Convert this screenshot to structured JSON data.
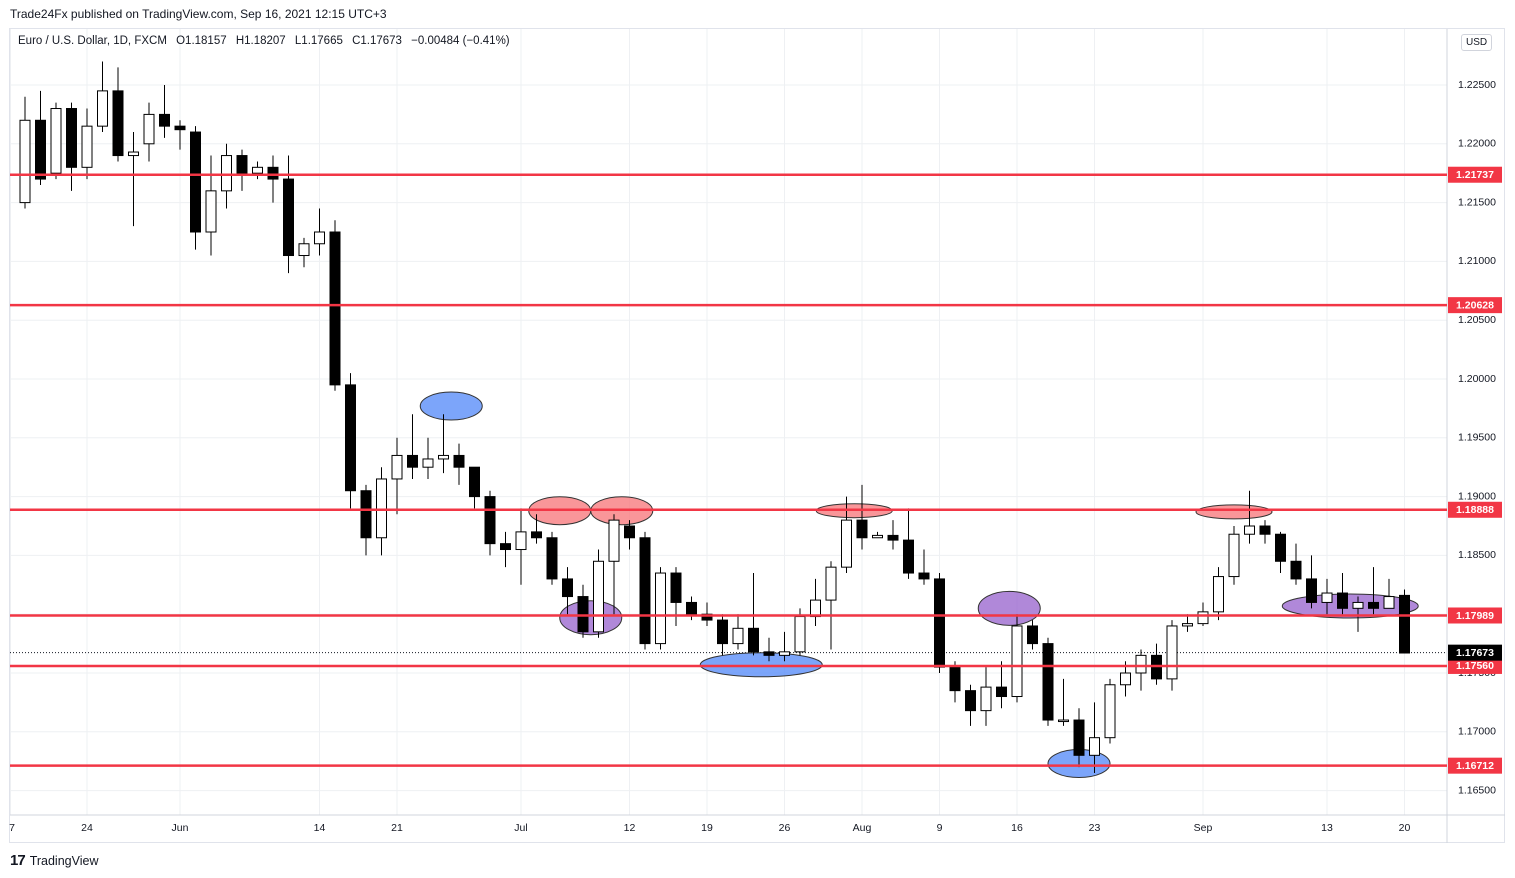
{
  "header": {
    "published": "Trade24Fx published on TradingView.com, Sep 16, 2021 12:15 UTC+3"
  },
  "legend": {
    "symbol": "Euro / U.S. Dollar, 1D, FXCM",
    "open": "O1.18157",
    "high": "H1.18207",
    "low": "L1.17665",
    "close": "C1.17673",
    "change": "−0.00484 (−0.41%)"
  },
  "currency_button": "USD",
  "footer": {
    "brand": "TradingView",
    "logo_glyph": "17"
  },
  "colors": {
    "level_line": "#f23645",
    "grid": "#eef0f3",
    "resistance_zone": "#f77c80",
    "support_zone": "#5b8ff9",
    "pivot_zone": "#9c6ad0",
    "candle_down": "#000000",
    "candle_up": "#ffffff"
  },
  "chart_data": {
    "type": "candlestick",
    "y_ticks": [
      "1.22500",
      "1.22000",
      "1.21500",
      "1.21000",
      "1.20500",
      "1.20000",
      "1.19500",
      "1.19000",
      "1.18500",
      "1.18000",
      "1.17500",
      "1.17000",
      "1.16500"
    ],
    "x_ticks": [
      {
        "label": "7",
        "i": -1
      },
      {
        "label": "24",
        "i": 4
      },
      {
        "label": "Jun",
        "i": 10
      },
      {
        "label": "14",
        "i": 19
      },
      {
        "label": "21",
        "i": 24
      },
      {
        "label": "Jul",
        "i": 32
      },
      {
        "label": "12",
        "i": 39
      },
      {
        "label": "19",
        "i": 44
      },
      {
        "label": "26",
        "i": 49
      },
      {
        "label": "Aug",
        "i": 54
      },
      {
        "label": "9",
        "i": 59
      },
      {
        "label": "16",
        "i": 64
      },
      {
        "label": "23",
        "i": 69
      },
      {
        "label": "Sep",
        "i": 76
      },
      {
        "label": "13",
        "i": 84
      },
      {
        "label": "20",
        "i": 89
      }
    ],
    "last_price": "1.17673",
    "levels": [
      {
        "label": "1.21737",
        "value": 1.21737
      },
      {
        "label": "1.20628",
        "value": 1.20628
      },
      {
        "label": "1.18888",
        "value": 1.18888
      },
      {
        "label": "1.17989",
        "value": 1.17989
      },
      {
        "label": "1.17560",
        "value": 1.1756
      },
      {
        "label": "1.16712",
        "value": 1.16712
      }
    ],
    "zones": [
      {
        "kind": "support",
        "i": 27.5,
        "price": 1.1977
      },
      {
        "kind": "resistance",
        "i": 34.5,
        "price": 1.1888
      },
      {
        "kind": "resistance",
        "i": 38.5,
        "price": 1.1888
      },
      {
        "kind": "pivot",
        "i": 36.5,
        "price": 1.1797
      },
      {
        "kind": "support",
        "i": 47.5,
        "price": 1.1757
      },
      {
        "kind": "resistance",
        "i": 53.5,
        "price": 1.1888
      },
      {
        "kind": "pivot",
        "i": 63.5,
        "price": 1.1805
      },
      {
        "kind": "support",
        "i": 68,
        "price": 1.1673
      },
      {
        "kind": "resistance",
        "i": 78,
        "price": 1.1887
      },
      {
        "kind": "pivot",
        "i": 85.5,
        "price": 1.1807
      }
    ],
    "candles": [
      [
        1.215,
        1.222,
        1.224,
        1.2145
      ],
      [
        1.222,
        1.217,
        1.2245,
        1.2165
      ],
      [
        1.2175,
        1.223,
        1.2235,
        1.217
      ],
      [
        1.223,
        1.218,
        1.2235,
        1.216
      ],
      [
        1.218,
        1.2215,
        1.223,
        1.217
      ],
      [
        1.2215,
        1.2245,
        1.227,
        1.221
      ],
      [
        1.2245,
        1.219,
        1.2265,
        1.2185
      ],
      [
        1.219,
        1.2193,
        1.221,
        1.213
      ],
      [
        1.22,
        1.2225,
        1.2235,
        1.2185
      ],
      [
        1.2225,
        1.2215,
        1.225,
        1.2205
      ],
      [
        1.2215,
        1.2212,
        1.222,
        1.2195
      ],
      [
        1.221,
        1.2125,
        1.2215,
        1.211
      ],
      [
        1.2125,
        1.216,
        1.219,
        1.2105
      ],
      [
        1.216,
        1.219,
        1.22,
        1.2145
      ],
      [
        1.219,
        1.2175,
        1.2195,
        1.216
      ],
      [
        1.2175,
        1.218,
        1.2185,
        1.217
      ],
      [
        1.218,
        1.217,
        1.219,
        1.215
      ],
      [
        1.217,
        1.2105,
        1.219,
        1.209
      ],
      [
        1.2105,
        1.2115,
        1.212,
        1.2095
      ],
      [
        1.2115,
        1.2125,
        1.2145,
        1.2105
      ],
      [
        1.2125,
        1.1995,
        1.2135,
        1.199
      ],
      [
        1.1995,
        1.1905,
        1.2005,
        1.189
      ],
      [
        1.1905,
        1.1865,
        1.191,
        1.185
      ],
      [
        1.1865,
        1.1915,
        1.1925,
        1.185
      ],
      [
        1.1915,
        1.1935,
        1.195,
        1.1885
      ],
      [
        1.1935,
        1.1925,
        1.197,
        1.1915
      ],
      [
        1.1925,
        1.1932,
        1.195,
        1.1915
      ],
      [
        1.1932,
        1.1935,
        1.197,
        1.192
      ],
      [
        1.1935,
        1.1925,
        1.1945,
        1.191
      ],
      [
        1.1925,
        1.19,
        1.1925,
        1.189
      ],
      [
        1.19,
        1.186,
        1.1905,
        1.185
      ],
      [
        1.186,
        1.1855,
        1.187,
        1.184
      ],
      [
        1.1855,
        1.187,
        1.189,
        1.1825
      ],
      [
        1.187,
        1.1865,
        1.1885,
        1.186
      ],
      [
        1.1865,
        1.183,
        1.187,
        1.1825
      ],
      [
        1.183,
        1.1815,
        1.184,
        1.18
      ],
      [
        1.1815,
        1.1785,
        1.1825,
        1.178
      ],
      [
        1.1785,
        1.1845,
        1.1855,
        1.178
      ],
      [
        1.1845,
        1.188,
        1.1885,
        1.18
      ],
      [
        1.1875,
        1.1865,
        1.188,
        1.1855
      ],
      [
        1.1865,
        1.1775,
        1.187,
        1.177
      ],
      [
        1.1775,
        1.1835,
        1.184,
        1.177
      ],
      [
        1.1835,
        1.181,
        1.184,
        1.179
      ],
      [
        1.181,
        1.18,
        1.1815,
        1.1795
      ],
      [
        1.18,
        1.1795,
        1.181,
        1.179
      ],
      [
        1.1795,
        1.1775,
        1.18,
        1.1765
      ],
      [
        1.1775,
        1.1788,
        1.18,
        1.177
      ],
      [
        1.1788,
        1.1768,
        1.1835,
        1.1765
      ],
      [
        1.1768,
        1.1765,
        1.178,
        1.176
      ],
      [
        1.1765,
        1.1768,
        1.1785,
        1.176
      ],
      [
        1.1768,
        1.1798,
        1.1805,
        1.1765
      ],
      [
        1.1798,
        1.1812,
        1.183,
        1.179
      ],
      [
        1.1812,
        1.184,
        1.1845,
        1.177
      ],
      [
        1.184,
        1.188,
        1.19,
        1.1835
      ],
      [
        1.188,
        1.1865,
        1.191,
        1.1855
      ],
      [
        1.1865,
        1.1867,
        1.187,
        1.1865
      ],
      [
        1.1867,
        1.1863,
        1.188,
        1.1855
      ],
      [
        1.1863,
        1.1835,
        1.189,
        1.183
      ],
      [
        1.1835,
        1.183,
        1.1855,
        1.1825
      ],
      [
        1.183,
        1.1755,
        1.1835,
        1.175
      ],
      [
        1.1755,
        1.1735,
        1.176,
        1.1725
      ],
      [
        1.1735,
        1.1718,
        1.174,
        1.1705
      ],
      [
        1.1718,
        1.1738,
        1.1755,
        1.1705
      ],
      [
        1.1738,
        1.173,
        1.176,
        1.172
      ],
      [
        1.173,
        1.179,
        1.18,
        1.1725
      ],
      [
        1.179,
        1.1775,
        1.1795,
        1.177
      ],
      [
        1.1775,
        1.171,
        1.178,
        1.1705
      ],
      [
        1.171,
        1.171,
        1.1745,
        1.1705
      ],
      [
        1.171,
        1.168,
        1.172,
        1.167
      ],
      [
        1.168,
        1.1695,
        1.1725,
        1.1665
      ],
      [
        1.1695,
        1.174,
        1.1745,
        1.169
      ],
      [
        1.174,
        1.175,
        1.176,
        1.173
      ],
      [
        1.175,
        1.1765,
        1.177,
        1.1735
      ],
      [
        1.1765,
        1.1745,
        1.1775,
        1.174
      ],
      [
        1.1745,
        1.179,
        1.1795,
        1.1735
      ],
      [
        1.179,
        1.1792,
        1.18,
        1.1785
      ],
      [
        1.1792,
        1.1802,
        1.181,
        1.179
      ],
      [
        1.1802,
        1.1832,
        1.184,
        1.1795
      ],
      [
        1.1832,
        1.1868,
        1.1875,
        1.1825
      ],
      [
        1.1868,
        1.1875,
        1.1905,
        1.186
      ],
      [
        1.1875,
        1.1868,
        1.188,
        1.186
      ],
      [
        1.1868,
        1.1845,
        1.187,
        1.1835
      ],
      [
        1.1845,
        1.183,
        1.186,
        1.1825
      ],
      [
        1.183,
        1.181,
        1.185,
        1.1805
      ],
      [
        1.181,
        1.1818,
        1.183,
        1.18
      ],
      [
        1.1818,
        1.1805,
        1.1835,
        1.18
      ],
      [
        1.1805,
        1.181,
        1.1815,
        1.1785
      ],
      [
        1.181,
        1.1805,
        1.184,
        1.18
      ],
      [
        1.1805,
        1.1815,
        1.183,
        1.1805
      ],
      [
        1.1816,
        1.1767,
        1.1821,
        1.1767
      ]
    ]
  }
}
